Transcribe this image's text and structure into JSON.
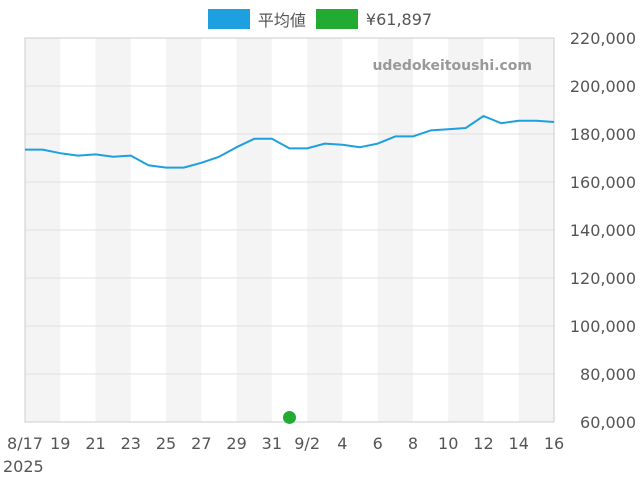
{
  "legend": {
    "series1_label": "平均値",
    "series2_label": "¥61,897"
  },
  "watermark": "udedokeitoushi.com",
  "colors": {
    "line": "#1ea0e0",
    "marker": "#22aa33",
    "band": "#f4f4f4",
    "grid": "#e0e0e0",
    "frame": "#cccccc"
  },
  "chart_data": {
    "type": "line",
    "title": "",
    "xlabel": "",
    "ylabel": "",
    "x_ticks": [
      "8/17\n2025",
      "19",
      "21",
      "23",
      "25",
      "27",
      "29",
      "31",
      "9/2",
      "4",
      "6",
      "8",
      "10",
      "12",
      "14",
      "16"
    ],
    "y_ticks": [
      "220,000",
      "200,000",
      "180,000",
      "160,000",
      "140,000",
      "120,000",
      "100,000",
      "80,000",
      "60,000"
    ],
    "ylim": [
      60000,
      220000
    ],
    "y_axis_side": "right",
    "grid": true,
    "legend_position": "top-center",
    "series": [
      {
        "name": "平均値",
        "color": "#1ea0e0",
        "x": [
          "2025-08-17",
          "2025-08-18",
          "2025-08-19",
          "2025-08-20",
          "2025-08-21",
          "2025-08-22",
          "2025-08-23",
          "2025-08-24",
          "2025-08-25",
          "2025-08-26",
          "2025-08-27",
          "2025-08-28",
          "2025-08-29",
          "2025-08-30",
          "2025-08-31",
          "2025-09-01",
          "2025-09-02",
          "2025-09-03",
          "2025-09-04",
          "2025-09-05",
          "2025-09-06",
          "2025-09-07",
          "2025-09-08",
          "2025-09-09",
          "2025-09-10",
          "2025-09-11",
          "2025-09-12",
          "2025-09-13",
          "2025-09-14",
          "2025-09-15",
          "2025-09-16"
        ],
        "values": [
          173500,
          173500,
          172000,
          171000,
          171500,
          170500,
          171000,
          167000,
          166000,
          166000,
          168000,
          170500,
          174500,
          178000,
          178000,
          174000,
          174000,
          176000,
          175500,
          174500,
          176000,
          179000,
          179000,
          181500,
          182000,
          182500,
          187500,
          184500,
          185500,
          185500,
          185000
        ]
      },
      {
        "name": "¥61,897",
        "color": "#22aa33",
        "type": "scatter",
        "x": [
          "2025-09-01"
        ],
        "values": [
          61897
        ]
      }
    ]
  }
}
